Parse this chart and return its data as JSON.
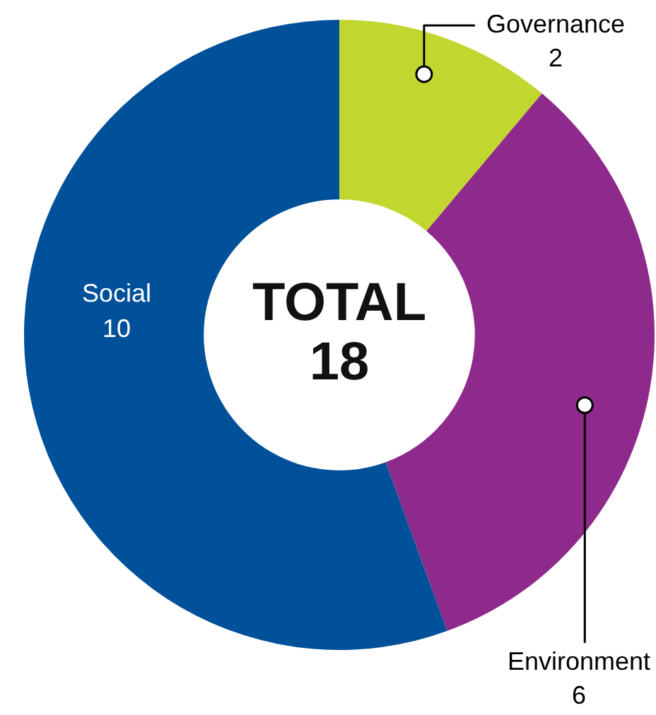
{
  "chart_data": {
    "type": "donut",
    "categories": [
      "Governance",
      "Environment",
      "Social"
    ],
    "values": [
      2,
      6,
      10
    ],
    "colors": [
      "#c1d72f",
      "#8e2a8b",
      "#00509a"
    ],
    "annotations": [
      "TOTAL",
      "18"
    ],
    "data_labels": true,
    "legend": false
  }
}
